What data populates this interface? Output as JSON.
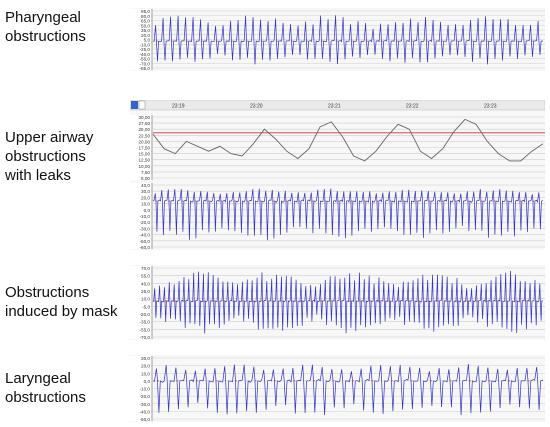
{
  "labels": {
    "pharyngeal": [
      "Pharyngeal",
      "obstructions"
    ],
    "upper_airway": [
      "Upper airway",
      "obstructions",
      "with leaks"
    ],
    "mask": [
      "Obstructions",
      "induced by mask"
    ],
    "laryngeal": [
      "Laryngeal",
      "obstructions"
    ]
  },
  "colors": {
    "trace": "#3333bb",
    "grid": "#cfcfcf",
    "redline": "#cc3333",
    "pressure": "#666666",
    "panel_bg": "#f7f7f7"
  },
  "chart_data": [
    {
      "type": "line",
      "title": "Pharyngeal obstructions",
      "yticks": [
        "95,0",
        "80,0",
        "65,0",
        "50,0",
        "35,0",
        "20,0",
        "5,0",
        "-10,0",
        "-25,0",
        "-40,0",
        "-55,0",
        "-70,0",
        "-85,0"
      ],
      "ylim": [
        -85,
        95
      ],
      "breaths": 52,
      "series": [
        {
          "baseline": 0,
          "peak_range": [
            15,
            85
          ],
          "trough_range": [
            -20,
            -75
          ]
        }
      ]
    },
    {
      "type": "line",
      "title": "Upper airway obstructions with leaks",
      "time_labels": [
        "23:19",
        "23:20",
        "23:21",
        "23:22",
        "23:23"
      ],
      "pressure_yticks": [
        "30,00",
        "27,50",
        "25,00",
        "22,50",
        "20,00",
        "17,50",
        "15,00",
        "12,50",
        "10,00",
        "7,50",
        "5,00"
      ],
      "pressure_ylim": [
        5,
        30
      ],
      "threshold": 23.5,
      "pressure_series": [
        23,
        17,
        15,
        20,
        18,
        16,
        18,
        15,
        14,
        19,
        25,
        21,
        16,
        13,
        17,
        26,
        28,
        22,
        14,
        12,
        16,
        22,
        27,
        25,
        16,
        13,
        17,
        24,
        29,
        27,
        20,
        15,
        12,
        12,
        16,
        19
      ],
      "flow_yticks": [
        "40,0",
        "30,0",
        "20,0",
        "10,0",
        "0,0",
        "-10,0",
        "-20,0",
        "-30,0",
        "-40,0",
        "-50,0",
        "-60,0"
      ],
      "flow_ylim": [
        -60,
        40
      ],
      "breaths": 60,
      "series": [
        {
          "baseline": 14,
          "peak_range": [
            20,
            35
          ],
          "trough_range": [
            -10,
            -50
          ]
        }
      ]
    },
    {
      "type": "line",
      "title": "Obstructions induced by mask",
      "yticks": [
        "70,0",
        "55,0",
        "40,0",
        "25,0",
        "10,0",
        "-5,0",
        "-20,0",
        "-35,0",
        "-55,0",
        "-70,0"
      ],
      "ylim": [
        -70,
        70
      ],
      "breaths": 80,
      "series": [
        {
          "baseline": 3,
          "peak_range": [
            10,
            65
          ],
          "trough_range": [
            -5,
            -65
          ]
        }
      ]
    },
    {
      "type": "line",
      "title": "Laryngeal obstructions",
      "yticks": [
        "30,0",
        "20,0",
        "10,0",
        "0,0",
        "-10,0",
        "-20,0",
        "-30,0",
        "-40,0",
        "-50,0"
      ],
      "ylim": [
        -50,
        30
      ],
      "breaths": 40,
      "series": [
        {
          "baseline": 0,
          "peak_range": [
            8,
            22
          ],
          "trough_range": [
            -20,
            -48
          ]
        }
      ]
    }
  ]
}
